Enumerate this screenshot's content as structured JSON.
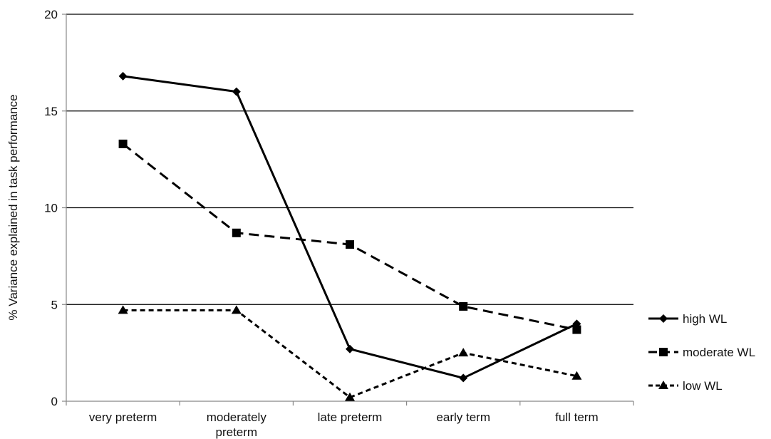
{
  "chart_data": {
    "type": "line",
    "categories": [
      "very preterm",
      "moderately preterm",
      "late preterm",
      "early term",
      "full term"
    ],
    "category_label_lines": [
      [
        "very preterm"
      ],
      [
        "moderately",
        "preterm"
      ],
      [
        "late preterm"
      ],
      [
        "early term"
      ],
      [
        "full term"
      ]
    ],
    "ylabel": "% Variance explained in task performance",
    "ylim": [
      0,
      20
    ],
    "yticks": [
      0,
      5,
      10,
      15,
      20
    ],
    "grid": true,
    "legend_position": "right",
    "series": [
      {
        "name": "high WL",
        "marker": "diamond",
        "dash": "solid",
        "values": [
          16.8,
          16.0,
          2.7,
          1.2,
          4.0
        ]
      },
      {
        "name": "moderate WL",
        "marker": "square",
        "dash": "dashed",
        "values": [
          13.3,
          8.7,
          8.1,
          4.9,
          3.7
        ]
      },
      {
        "name": "low WL",
        "marker": "triangle",
        "dash": "dotted",
        "values": [
          4.7,
          4.7,
          0.2,
          2.5,
          1.3
        ]
      }
    ],
    "colors": {
      "line": "#000000",
      "grid": "#000000",
      "axis": "#888888"
    }
  }
}
